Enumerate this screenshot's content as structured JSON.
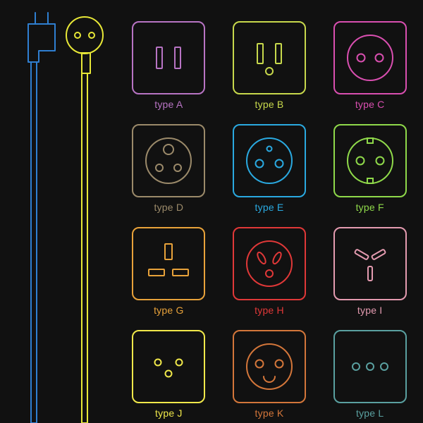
{
  "background_color": "#111111",
  "stroke_width": 2,
  "socket_size": 100,
  "corner_radius": 10,
  "label_fontsize": 14,
  "plugs": {
    "left_plug_color": "#2f7fd1",
    "right_plug_color": "#e8e837"
  },
  "sockets": [
    {
      "id": "A",
      "label": "type A",
      "color": "#b874c4",
      "label_color": "#b874c4",
      "shape": "typeA"
    },
    {
      "id": "B",
      "label": "type B",
      "color": "#c7d84c",
      "label_color": "#c7d84c",
      "shape": "typeB"
    },
    {
      "id": "C",
      "label": "type C",
      "color": "#d94fb0",
      "label_color": "#d94fb0",
      "shape": "typeC"
    },
    {
      "id": "D",
      "label": "type D",
      "color": "#9b8a6a",
      "label_color": "#9b8a6a",
      "shape": "typeD"
    },
    {
      "id": "E",
      "label": "type E",
      "color": "#2aa9e0",
      "label_color": "#2aa9e0",
      "shape": "typeE"
    },
    {
      "id": "F",
      "label": "type F",
      "color": "#8fd94a",
      "label_color": "#8fd94a",
      "shape": "typeF"
    },
    {
      "id": "G",
      "label": "type G",
      "color": "#e8a23a",
      "label_color": "#e8a23a",
      "shape": "typeG"
    },
    {
      "id": "H",
      "label": "type H",
      "color": "#e03838",
      "label_color": "#e03838",
      "shape": "typeH"
    },
    {
      "id": "I",
      "label": "type I",
      "color": "#e49bb0",
      "label_color": "#e49bb0",
      "shape": "typeI"
    },
    {
      "id": "J",
      "label": "type J",
      "color": "#f0e84a",
      "label_color": "#f0e84a",
      "shape": "typeJ"
    },
    {
      "id": "K",
      "label": "type K",
      "color": "#d3763a",
      "label_color": "#d3763a",
      "shape": "typeK"
    },
    {
      "id": "L",
      "label": "type L",
      "color": "#5aa0a0",
      "label_color": "#5aa0a0",
      "shape": "typeL"
    }
  ]
}
